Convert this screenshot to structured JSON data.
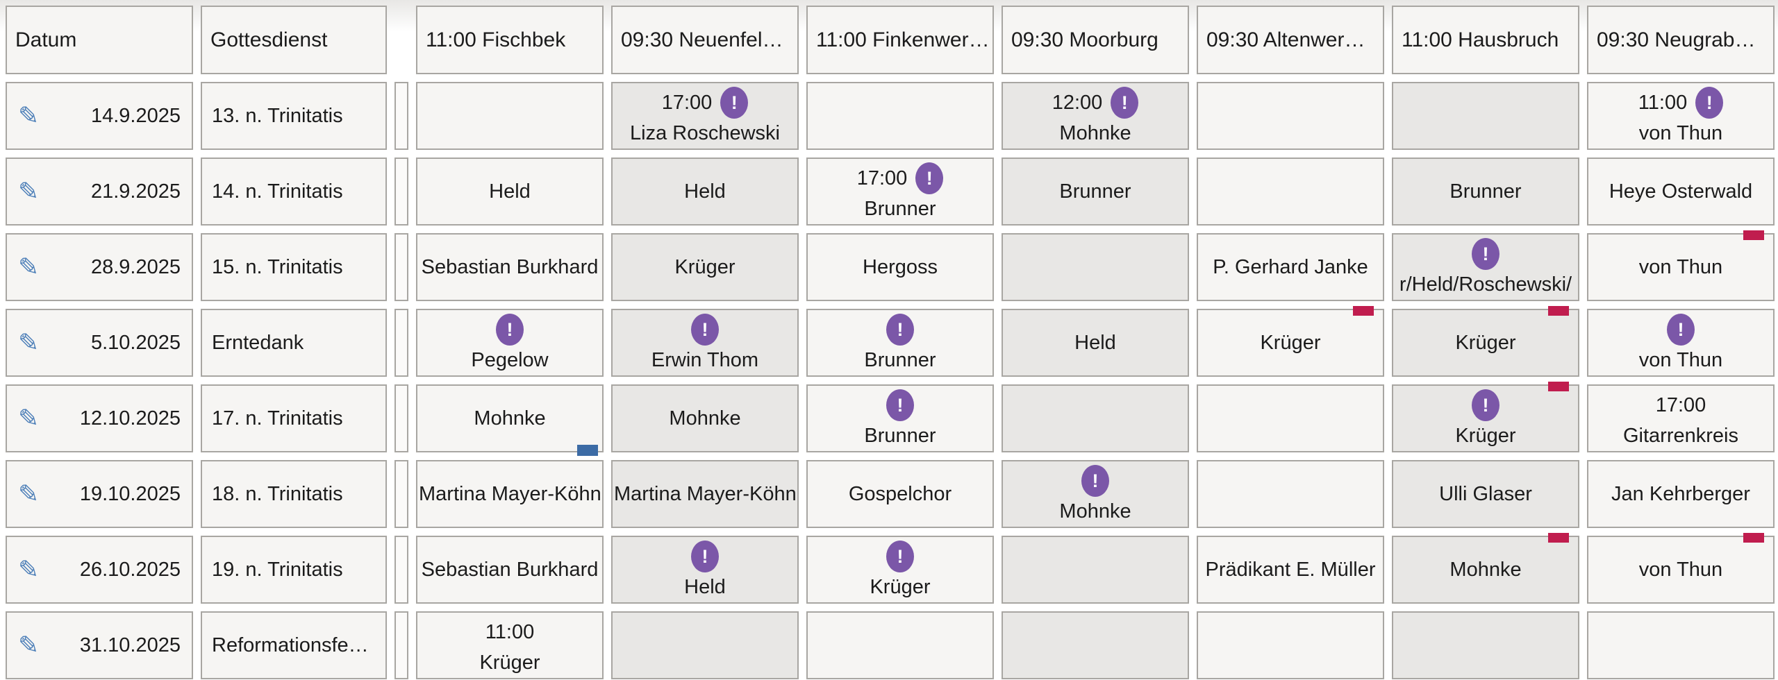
{
  "app": {
    "description_labels": {
      "date_column": "Datum",
      "service_column": "Gottesdienst"
    }
  },
  "colors": {
    "cell_bg_light": "#f6f5f3",
    "cell_bg_grey": "#e8e7e5",
    "cell_border": "#a8a6a2",
    "alert_badge_purple": "#7b57a8",
    "red_flag": "#c01d4e",
    "blue_flag": "#3c6ba5",
    "edit_pencil_blue": "#4d7fb8"
  },
  "icons": {
    "edit_pencil_glyph": "✎",
    "alert_glyph": "!"
  },
  "table": {
    "headers": [
      "Datum",
      "Gottesdienst",
      "",
      "11:00 Fischbek",
      "09:30 Neuenfel…",
      "11:00 Finkenwer…",
      "09:30 Moorburg",
      "09:30 Altenwer…",
      "11:00 Hausbruch",
      "09:30 Neugrab…"
    ],
    "grey_striped_location_columns": [
      1,
      3,
      5
    ],
    "rows": [
      {
        "date": "14.9.2025",
        "service": "13. n. Trinitatis",
        "cells": [
          {},
          {
            "time": "17:00",
            "badge": true,
            "name": "Liza Roschewski"
          },
          {},
          {
            "time": "12:00",
            "badge": true,
            "name": "Mohnke"
          },
          {},
          {},
          {
            "time": "11:00",
            "badge": true,
            "name": "von Thun"
          }
        ]
      },
      {
        "date": "21.9.2025",
        "service": "14. n. Trinitatis",
        "cells": [
          {
            "name": "Held"
          },
          {
            "name": "Held"
          },
          {
            "time": "17:00",
            "badge": true,
            "name": "Brunner"
          },
          {
            "name": "Brunner"
          },
          {},
          {
            "name": "Brunner"
          },
          {
            "name": "Heye Osterwald"
          }
        ]
      },
      {
        "date": "28.9.2025",
        "service": "15. n. Trinitatis",
        "cells": [
          {
            "name": "Sebastian Burkhard"
          },
          {
            "name": "Krüger"
          },
          {
            "name": "Hergoss"
          },
          {},
          {
            "name": "P. Gerhard Janke"
          },
          {
            "badge": true,
            "name": "r/Held/Roschewski/"
          },
          {
            "name": "von Thun",
            "marker": "red"
          }
        ]
      },
      {
        "date": "5.10.2025",
        "service": "Erntedank",
        "cells": [
          {
            "badge": true,
            "name": "Pegelow"
          },
          {
            "badge": true,
            "name": "Erwin Thom"
          },
          {
            "badge": true,
            "name": "Brunner"
          },
          {
            "name": "Held"
          },
          {
            "name": "Krüger",
            "marker": "red"
          },
          {
            "name": "Krüger",
            "marker": "red"
          },
          {
            "badge": true,
            "name": "von Thun"
          }
        ]
      },
      {
        "date": "12.10.2025",
        "service": "17. n. Trinitatis",
        "cells": [
          {
            "name": "Mohnke",
            "marker": "blue"
          },
          {
            "name": "Mohnke"
          },
          {
            "badge": true,
            "name": "Brunner"
          },
          {},
          {},
          {
            "badge": true,
            "name": "Krüger",
            "marker": "red"
          },
          {
            "time": "17:00",
            "name": "Gitarrenkreis"
          }
        ]
      },
      {
        "date": "19.10.2025",
        "service": "18. n. Trinitatis",
        "cells": [
          {
            "name": "Martina Mayer-Köhn"
          },
          {
            "name": "Martina Mayer-Köhn"
          },
          {
            "name": "Gospelchor"
          },
          {
            "badge": true,
            "name": "Mohnke"
          },
          {},
          {
            "name": "Ulli Glaser"
          },
          {
            "name": "Jan Kehrberger"
          }
        ]
      },
      {
        "date": "26.10.2025",
        "service": "19. n. Trinitatis",
        "cells": [
          {
            "name": "Sebastian Burkhard"
          },
          {
            "badge": true,
            "name": "Held"
          },
          {
            "badge": true,
            "name": "Krüger"
          },
          {},
          {
            "name": "Prädikant E. Müller"
          },
          {
            "name": "Mohnke",
            "marker": "red"
          },
          {
            "name": "von Thun",
            "marker": "red"
          }
        ]
      },
      {
        "date": "31.10.2025",
        "service": "Reformationsfe…",
        "cells": [
          {
            "time": "11:00",
            "name": "Krüger"
          },
          {},
          {},
          {},
          {},
          {},
          {}
        ]
      }
    ]
  }
}
